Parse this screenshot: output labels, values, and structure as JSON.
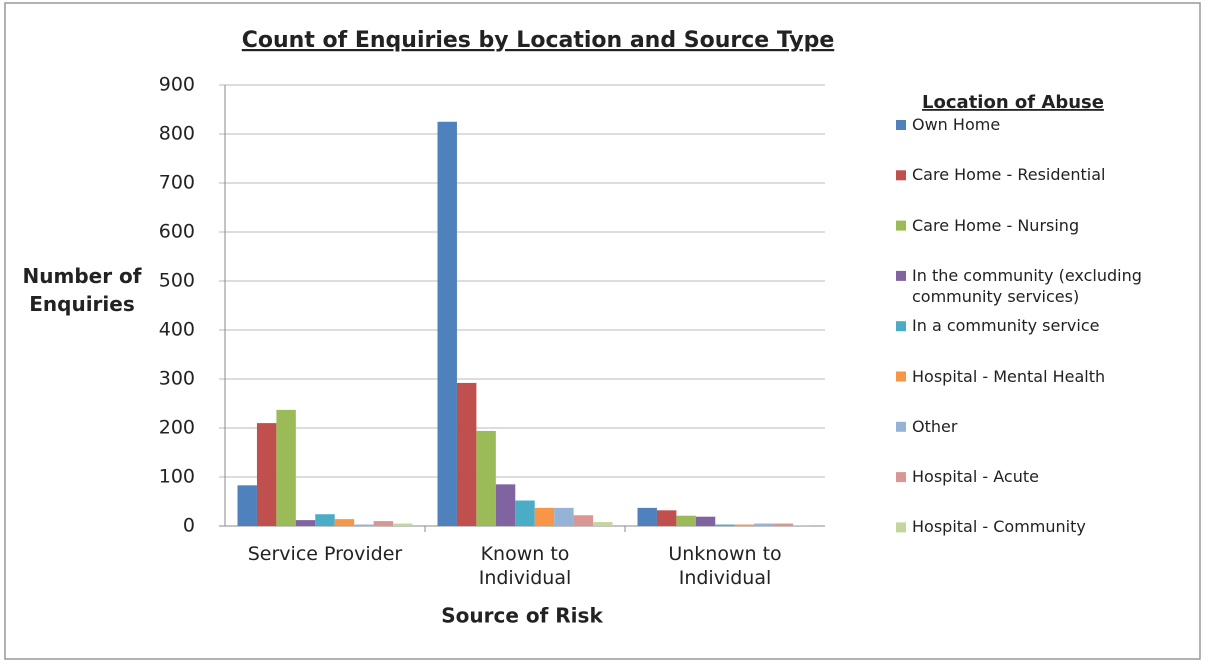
{
  "chart_data": {
    "type": "bar",
    "title": "Count of Enquiries by Location and Source Type",
    "y_label": "Number of Enquiries",
    "x_label": "Source of Risk",
    "legend_title": "Location of Abuse",
    "legend": "right",
    "grid": true,
    "categories": [
      "Service Provider",
      "Known to Individual",
      "Unknown to Individual"
    ],
    "ylim": [
      0,
      900
    ],
    "yticks": [
      0,
      100,
      200,
      300,
      400,
      500,
      600,
      700,
      800,
      900
    ],
    "series": [
      {
        "name": "Own Home",
        "color": "#4f81bd",
        "values": [
          83,
          825,
          37
        ]
      },
      {
        "name": "Care Home - Residential",
        "color": "#c0504d",
        "values": [
          210,
          292,
          32
        ]
      },
      {
        "name": "Care Home - Nursing",
        "color": "#9bbb59",
        "values": [
          237,
          194,
          21
        ]
      },
      {
        "name": "In the community (excluding community services)",
        "color": "#8064a2",
        "values": [
          12,
          85,
          19
        ]
      },
      {
        "name": "In a community service",
        "color": "#4bacc6",
        "values": [
          24,
          52,
          3
        ]
      },
      {
        "name": "Hospital - Mental Health",
        "color": "#f79646",
        "values": [
          14,
          37,
          3
        ]
      },
      {
        "name": "Other",
        "color": "#95b3d7",
        "values": [
          3,
          37,
          5
        ]
      },
      {
        "name": "Hospital - Acute",
        "color": "#da9694",
        "values": [
          10,
          22,
          5
        ]
      },
      {
        "name": "Hospital - Community",
        "color": "#c3d69b",
        "values": [
          5,
          8,
          2
        ]
      }
    ]
  }
}
